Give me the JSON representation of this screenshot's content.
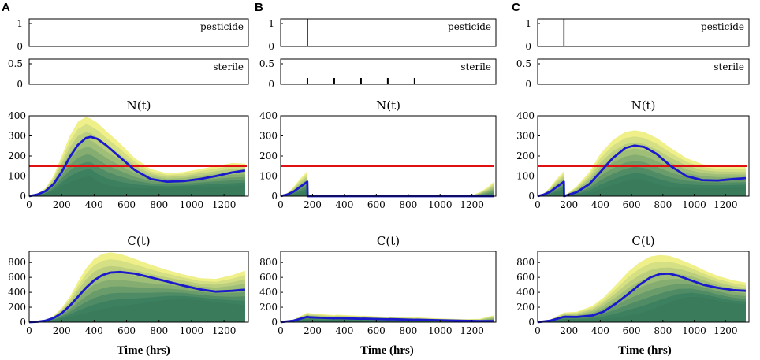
{
  "colors": {
    "mean_line": "#1a1acc",
    "threshold": "#e01010",
    "band_outer": "#f0f08a",
    "band_inner": "#3d8060",
    "axis": "#000000"
  },
  "xlabel": "Time (hrs)",
  "chart_data": [
    {
      "panel": "A",
      "type": "area",
      "pesticide": {
        "label": "pesticide",
        "yticks": [
          "1",
          "0"
        ],
        "pulses": []
      },
      "sterile": {
        "label": "sterile",
        "yticks": [
          "0.5",
          "0"
        ],
        "pulses": []
      },
      "N": {
        "title": "N(t)",
        "ylim": [
          0,
          400
        ],
        "xlim": [
          0,
          1350
        ],
        "yticks": [
          0,
          100,
          200,
          300,
          400
        ],
        "xticks": [
          0,
          200,
          400,
          600,
          800,
          1000,
          1200
        ],
        "threshold": 150,
        "x": [
          0,
          50,
          100,
          150,
          200,
          250,
          300,
          350,
          380,
          420,
          480,
          550,
          650,
          750,
          850,
          950,
          1050,
          1150,
          1250,
          1330
        ],
        "mean": [
          0,
          8,
          25,
          60,
          120,
          195,
          255,
          290,
          295,
          285,
          250,
          200,
          130,
          85,
          72,
          75,
          85,
          100,
          118,
          128
        ],
        "upper": [
          0,
          12,
          40,
          100,
          200,
          300,
          370,
          395,
          385,
          365,
          320,
          270,
          190,
          135,
          115,
          120,
          135,
          150,
          165,
          162
        ],
        "lower": [
          0,
          3,
          10,
          25,
          50,
          70,
          85,
          95,
          98,
          75,
          55,
          45,
          40,
          40,
          40,
          42,
          45,
          48,
          50,
          55
        ]
      },
      "C": {
        "title": "C(t)",
        "ylim": [
          0,
          950
        ],
        "xlim": [
          0,
          1350
        ],
        "yticks": [
          0,
          200,
          400,
          600,
          800
        ],
        "xticks": [
          0,
          200,
          400,
          600,
          800,
          1000,
          1200
        ],
        "x": [
          0,
          50,
          100,
          150,
          200,
          250,
          300,
          350,
          400,
          450,
          500,
          560,
          650,
          750,
          850,
          950,
          1050,
          1150,
          1250,
          1330
        ],
        "mean": [
          0,
          5,
          20,
          55,
          120,
          220,
          340,
          460,
          560,
          630,
          665,
          672,
          650,
          600,
          545,
          490,
          440,
          410,
          420,
          435
        ],
        "upper": [
          0,
          8,
          30,
          85,
          190,
          340,
          540,
          720,
          850,
          915,
          935,
          915,
          850,
          770,
          700,
          640,
          590,
          580,
          630,
          690
        ],
        "lower": [
          0,
          2,
          8,
          20,
          45,
          70,
          95,
          120,
          150,
          175,
          200,
          220,
          240,
          270,
          300,
          310,
          295,
          270,
          245,
          230
        ]
      }
    },
    {
      "panel": "B",
      "type": "area",
      "pesticide": {
        "label": "pesticide",
        "yticks": [
          "1",
          "0"
        ],
        "pulses": [
          168
        ]
      },
      "sterile": {
        "label": "sterile",
        "yticks": [
          "0.5",
          "0"
        ],
        "pulses": [
          168,
          336,
          504,
          672,
          840
        ]
      },
      "N": {
        "title": "N(t)",
        "ylim": [
          0,
          400
        ],
        "xlim": [
          0,
          1350
        ],
        "yticks": [
          0,
          100,
          200,
          300,
          400
        ],
        "xticks": [
          0,
          200,
          400,
          600,
          800,
          1000,
          1200
        ],
        "threshold": 150,
        "x": [
          0,
          40,
          80,
          120,
          160,
          167,
          169,
          250,
          500,
          800,
          1100,
          1200,
          1250,
          1300,
          1340
        ],
        "mean": [
          0,
          8,
          22,
          45,
          68,
          72,
          0,
          0,
          0,
          0,
          0,
          0,
          0,
          0,
          0
        ],
        "upper": [
          0,
          15,
          45,
          85,
          118,
          125,
          0,
          0,
          0,
          0,
          0,
          5,
          20,
          45,
          75
        ],
        "lower": [
          0,
          3,
          8,
          15,
          22,
          24,
          0,
          0,
          0,
          0,
          0,
          0,
          0,
          0,
          0
        ]
      },
      "C": {
        "title": "C(t)",
        "ylim": [
          0,
          950
        ],
        "xlim": [
          0,
          1350
        ],
        "yticks": [
          0,
          200,
          400,
          600,
          800
        ],
        "xticks": [
          0,
          200,
          400,
          600,
          800,
          1000,
          1200
        ],
        "x": [
          0,
          80,
          168,
          180,
          336,
          350,
          504,
          518,
          672,
          686,
          840,
          854,
          1000,
          1150,
          1250,
          1340
        ],
        "mean": [
          0,
          20,
          72,
          65,
          52,
          55,
          45,
          47,
          38,
          40,
          32,
          33,
          25,
          18,
          15,
          15
        ],
        "upper": [
          0,
          35,
          130,
          120,
          95,
          100,
          85,
          88,
          72,
          75,
          62,
          64,
          50,
          40,
          45,
          95
        ],
        "lower": [
          0,
          8,
          30,
          28,
          22,
          24,
          18,
          20,
          15,
          16,
          12,
          12,
          8,
          5,
          4,
          3
        ]
      }
    },
    {
      "panel": "C",
      "type": "area",
      "pesticide": {
        "label": "pesticide",
        "yticks": [
          "1",
          "0"
        ],
        "pulses": [
          168
        ]
      },
      "sterile": {
        "label": "sterile",
        "yticks": [
          "0.5",
          "0"
        ],
        "pulses": []
      },
      "N": {
        "title": "N(t)",
        "ylim": [
          0,
          400
        ],
        "xlim": [
          0,
          1350
        ],
        "yticks": [
          0,
          100,
          200,
          300,
          400
        ],
        "xticks": [
          0,
          200,
          400,
          600,
          800,
          1000,
          1200
        ],
        "threshold": 150,
        "x": [
          0,
          40,
          80,
          120,
          160,
          167,
          169,
          250,
          330,
          400,
          480,
          560,
          620,
          680,
          760,
          850,
          950,
          1050,
          1150,
          1250,
          1330
        ],
        "mean": [
          0,
          8,
          22,
          45,
          68,
          72,
          0,
          20,
          60,
          120,
          190,
          240,
          252,
          245,
          210,
          150,
          100,
          80,
          78,
          85,
          90
        ],
        "upper": [
          0,
          15,
          45,
          85,
          118,
          125,
          0,
          50,
          120,
          210,
          280,
          320,
          328,
          320,
          290,
          240,
          190,
          160,
          150,
          148,
          145
        ],
        "lower": [
          0,
          3,
          8,
          15,
          22,
          24,
          0,
          5,
          15,
          35,
          55,
          75,
          85,
          80,
          60,
          45,
          40,
          40,
          40,
          42,
          45
        ]
      },
      "C": {
        "title": "C(t)",
        "ylim": [
          0,
          950
        ],
        "xlim": [
          0,
          1350
        ],
        "yticks": [
          0,
          200,
          400,
          600,
          800
        ],
        "xticks": [
          0,
          200,
          400,
          600,
          800,
          1000,
          1200
        ],
        "x": [
          0,
          80,
          168,
          250,
          350,
          420,
          500,
          580,
          650,
          720,
          780,
          840,
          900,
          980,
          1060,
          1150,
          1250,
          1330
        ],
        "mean": [
          0,
          20,
          72,
          70,
          90,
          140,
          250,
          380,
          500,
          600,
          645,
          650,
          620,
          560,
          500,
          460,
          430,
          420
        ],
        "upper": [
          0,
          35,
          130,
          140,
          220,
          330,
          500,
          680,
          800,
          880,
          900,
          890,
          850,
          780,
          700,
          620,
          560,
          530
        ],
        "lower": [
          0,
          8,
          30,
          28,
          30,
          40,
          60,
          90,
          120,
          160,
          210,
          260,
          310,
          340,
          330,
          290,
          250,
          240
        ]
      }
    }
  ]
}
